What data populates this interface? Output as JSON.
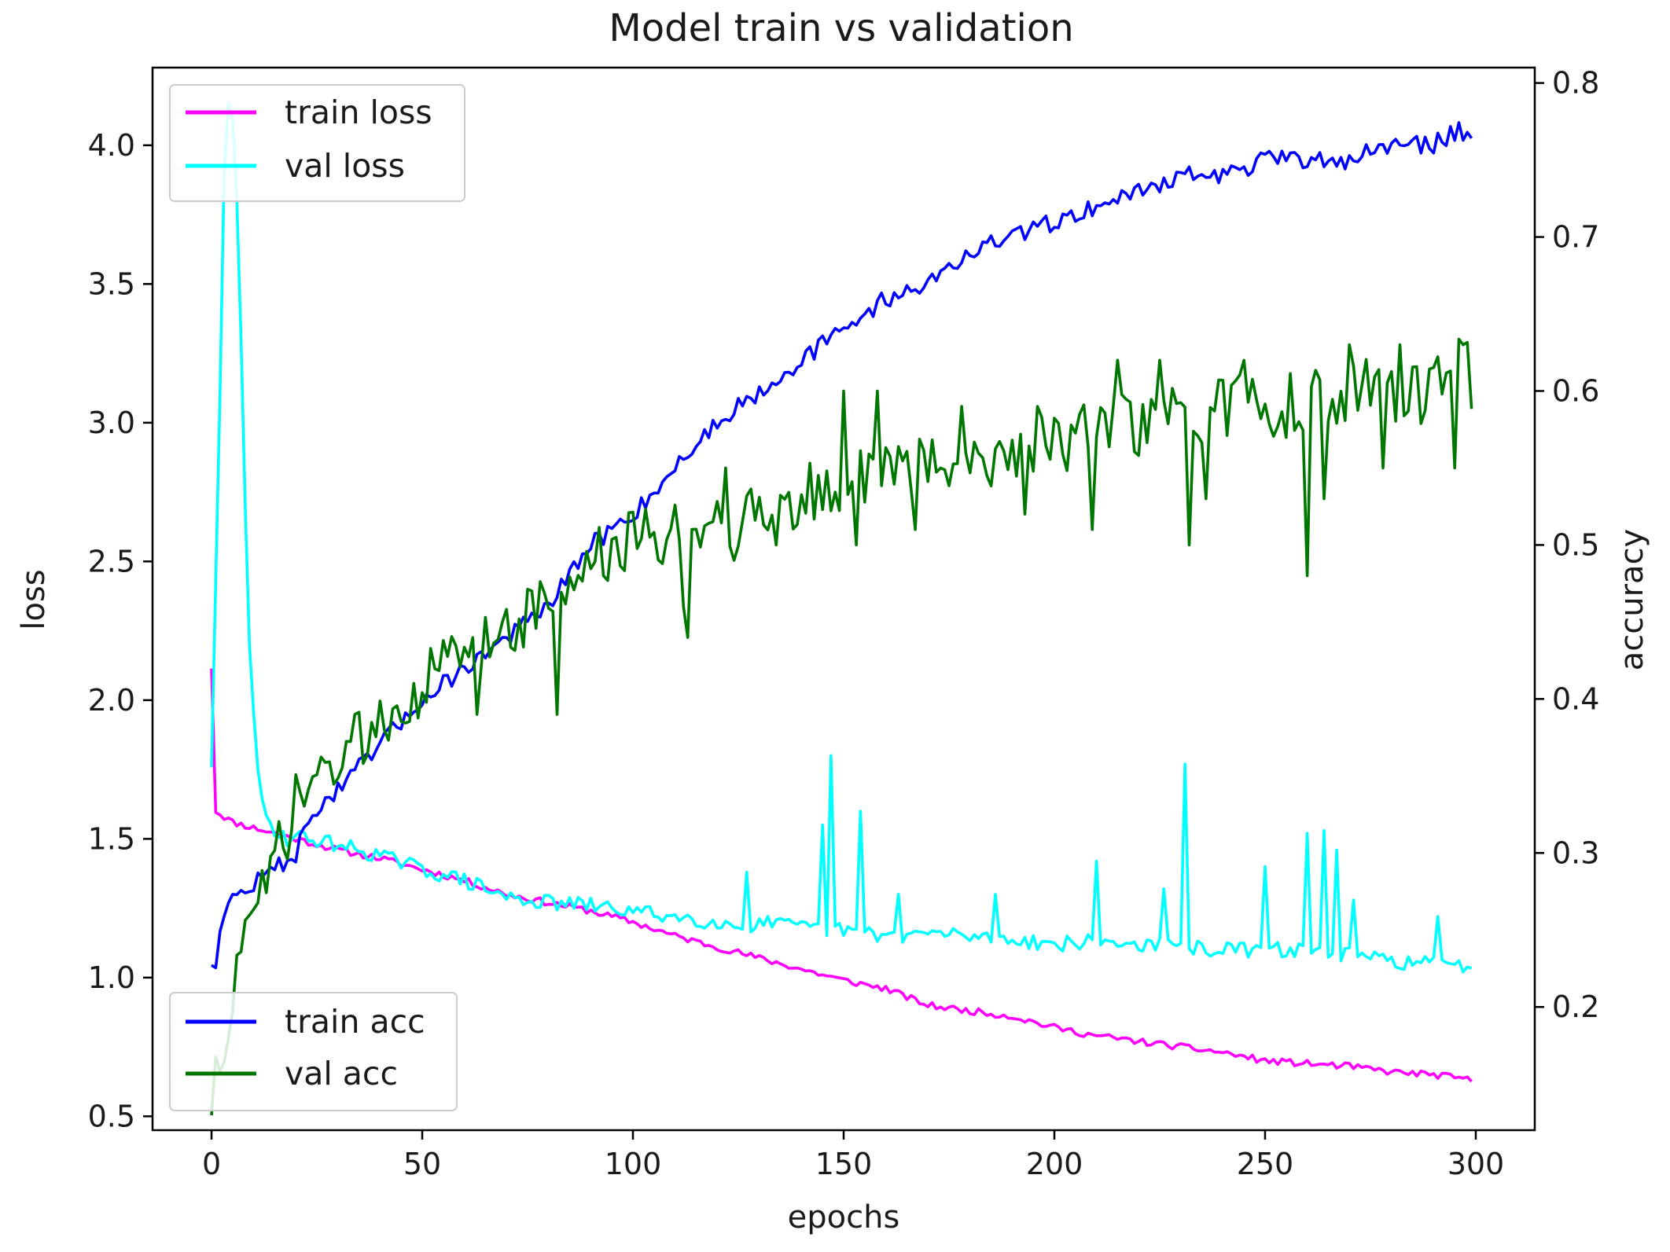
{
  "chart_data": {
    "type": "line",
    "title": "Model train vs validation",
    "xlabel": "epochs",
    "ylabel_left": "loss",
    "ylabel_right": "accuracy",
    "xlim": [
      -14,
      314
    ],
    "ylim_left": [
      0.45,
      4.28
    ],
    "ylim_right": [
      0.12,
      0.81
    ],
    "x_ticks": [
      "0",
      "50",
      "100",
      "150",
      "200",
      "250",
      "300"
    ],
    "x_tick_values": [
      0,
      50,
      100,
      150,
      200,
      250,
      300
    ],
    "y_left_ticks": [
      "0.5",
      "1.0",
      "1.5",
      "2.0",
      "2.5",
      "3.0",
      "3.5",
      "4.0"
    ],
    "y_left_tick_values": [
      0.5,
      1.0,
      1.5,
      2.0,
      2.5,
      3.0,
      3.5,
      4.0
    ],
    "y_right_ticks": [
      "0.2",
      "0.3",
      "0.4",
      "0.5",
      "0.6",
      "0.7",
      "0.8"
    ],
    "y_right_tick_values": [
      0.2,
      0.3,
      0.4,
      0.5,
      0.6,
      0.7,
      0.8
    ],
    "grid": false,
    "legend_loss": {
      "placement": "top-left",
      "entries": [
        "train loss",
        "val loss"
      ]
    },
    "legend_acc": {
      "placement": "bottom-left",
      "entries": [
        "train acc",
        "val acc"
      ]
    },
    "series": [
      {
        "name": "train loss",
        "axis": "left",
        "color": "#ff00ff",
        "points": [
          [
            0,
            2.12
          ],
          [
            1,
            1.6
          ],
          [
            3,
            1.58
          ],
          [
            5,
            1.56
          ],
          [
            10,
            1.54
          ],
          [
            15,
            1.52
          ],
          [
            20,
            1.5
          ],
          [
            25,
            1.48
          ],
          [
            30,
            1.46
          ],
          [
            40,
            1.43
          ],
          [
            50,
            1.39
          ],
          [
            60,
            1.35
          ],
          [
            70,
            1.3
          ],
          [
            80,
            1.27
          ],
          [
            90,
            1.24
          ],
          [
            100,
            1.2
          ],
          [
            110,
            1.15
          ],
          [
            120,
            1.11
          ],
          [
            130,
            1.07
          ],
          [
            140,
            1.03
          ],
          [
            150,
            0.99
          ],
          [
            160,
            0.96
          ],
          [
            170,
            0.9
          ],
          [
            180,
            0.88
          ],
          [
            190,
            0.86
          ],
          [
            200,
            0.82
          ],
          [
            210,
            0.79
          ],
          [
            220,
            0.77
          ],
          [
            230,
            0.75
          ],
          [
            240,
            0.73
          ],
          [
            250,
            0.7
          ],
          [
            260,
            0.69
          ],
          [
            270,
            0.68
          ],
          [
            280,
            0.66
          ],
          [
            290,
            0.65
          ],
          [
            299,
            0.63
          ]
        ],
        "noise": 0.012
      },
      {
        "name": "val loss",
        "axis": "left",
        "color": "#00ffff",
        "points": [
          [
            0,
            1.76
          ],
          [
            2,
            3.1
          ],
          [
            3,
            3.9
          ],
          [
            4,
            4.15
          ],
          [
            5,
            4.1
          ],
          [
            6,
            3.8
          ],
          [
            7,
            3.3
          ],
          [
            8,
            2.7
          ],
          [
            9,
            2.2
          ],
          [
            10,
            1.95
          ],
          [
            11,
            1.75
          ],
          [
            12,
            1.62
          ],
          [
            14,
            1.55
          ],
          [
            18,
            1.5
          ],
          [
            20,
            1.51
          ],
          [
            30,
            1.48
          ],
          [
            40,
            1.44
          ],
          [
            50,
            1.39
          ],
          [
            60,
            1.35
          ],
          [
            70,
            1.29
          ],
          [
            80,
            1.27
          ],
          [
            90,
            1.26
          ],
          [
            100,
            1.24
          ],
          [
            110,
            1.22
          ],
          [
            120,
            1.2
          ],
          [
            126,
            1.18
          ],
          [
            130,
            1.2
          ],
          [
            140,
            1.18
          ],
          [
            150,
            1.17
          ],
          [
            160,
            1.15
          ],
          [
            170,
            1.16
          ],
          [
            180,
            1.15
          ],
          [
            190,
            1.14
          ],
          [
            200,
            1.12
          ],
          [
            210,
            1.13
          ],
          [
            220,
            1.12
          ],
          [
            230,
            1.11
          ],
          [
            240,
            1.1
          ],
          [
            250,
            1.1
          ],
          [
            260,
            1.1
          ],
          [
            270,
            1.08
          ],
          [
            280,
            1.06
          ],
          [
            290,
            1.05
          ],
          [
            299,
            1.04
          ]
        ],
        "spikes": [
          [
            127,
            1.38
          ],
          [
            145,
            1.55
          ],
          [
            147,
            1.8
          ],
          [
            154,
            1.6
          ],
          [
            163,
            1.3
          ],
          [
            186,
            1.3
          ],
          [
            210,
            1.42
          ],
          [
            226,
            1.32
          ],
          [
            231,
            1.77
          ],
          [
            250,
            1.4
          ],
          [
            260,
            1.52
          ],
          [
            264,
            1.53
          ],
          [
            267,
            1.46
          ],
          [
            271,
            1.28
          ],
          [
            291,
            1.22
          ]
        ],
        "noise": 0.028
      },
      {
        "name": "train acc",
        "axis": "right",
        "color": "#0000ff",
        "points": [
          [
            0,
            0.23
          ],
          [
            1,
            0.225
          ],
          [
            2,
            0.255
          ],
          [
            3,
            0.26
          ],
          [
            5,
            0.27
          ],
          [
            8,
            0.275
          ],
          [
            10,
            0.28
          ],
          [
            15,
            0.29
          ],
          [
            20,
            0.3
          ],
          [
            25,
            0.33
          ],
          [
            30,
            0.34
          ],
          [
            40,
            0.37
          ],
          [
            50,
            0.4
          ],
          [
            60,
            0.42
          ],
          [
            70,
            0.44
          ],
          [
            80,
            0.46
          ],
          [
            90,
            0.5
          ],
          [
            100,
            0.52
          ],
          [
            110,
            0.55
          ],
          [
            120,
            0.58
          ],
          [
            130,
            0.6
          ],
          [
            140,
            0.62
          ],
          [
            150,
            0.64
          ],
          [
            160,
            0.66
          ],
          [
            170,
            0.67
          ],
          [
            180,
            0.69
          ],
          [
            190,
            0.7
          ],
          [
            200,
            0.71
          ],
          [
            210,
            0.72
          ],
          [
            220,
            0.73
          ],
          [
            230,
            0.74
          ],
          [
            240,
            0.74
          ],
          [
            250,
            0.75
          ],
          [
            260,
            0.75
          ],
          [
            270,
            0.75
          ],
          [
            280,
            0.76
          ],
          [
            290,
            0.76
          ],
          [
            296,
            0.77
          ],
          [
            299,
            0.765
          ]
        ],
        "noise": 0.006
      },
      {
        "name": "val acc",
        "axis": "right",
        "color": "#007700",
        "points": [
          [
            0,
            0.14
          ],
          [
            1,
            0.15
          ],
          [
            2,
            0.145
          ],
          [
            3,
            0.17
          ],
          [
            4,
            0.2
          ],
          [
            6,
            0.22
          ],
          [
            8,
            0.25
          ],
          [
            10,
            0.245
          ],
          [
            12,
            0.27
          ],
          [
            15,
            0.3
          ],
          [
            18,
            0.31
          ],
          [
            20,
            0.33
          ],
          [
            25,
            0.35
          ],
          [
            30,
            0.36
          ],
          [
            35,
            0.37
          ],
          [
            40,
            0.39
          ],
          [
            50,
            0.41
          ],
          [
            60,
            0.43
          ],
          [
            70,
            0.45
          ],
          [
            80,
            0.46
          ],
          [
            90,
            0.49
          ],
          [
            100,
            0.5
          ],
          [
            110,
            0.51
          ],
          [
            120,
            0.52
          ],
          [
            130,
            0.52
          ],
          [
            140,
            0.53
          ],
          [
            150,
            0.54
          ],
          [
            160,
            0.55
          ],
          [
            170,
            0.55
          ],
          [
            180,
            0.56
          ],
          [
            190,
            0.56
          ],
          [
            200,
            0.57
          ],
          [
            210,
            0.57
          ],
          [
            220,
            0.58
          ],
          [
            230,
            0.58
          ],
          [
            240,
            0.59
          ],
          [
            250,
            0.59
          ],
          [
            260,
            0.59
          ],
          [
            270,
            0.6
          ],
          [
            280,
            0.6
          ],
          [
            290,
            0.6
          ],
          [
            296,
            0.62
          ],
          [
            299,
            0.61
          ]
        ],
        "dips": [
          [
            41,
            0.38
          ],
          [
            63,
            0.39
          ],
          [
            82,
            0.39
          ],
          [
            112,
            0.46
          ],
          [
            113,
            0.44
          ],
          [
            124,
            0.49
          ],
          [
            134,
            0.5
          ],
          [
            153,
            0.5
          ],
          [
            167,
            0.51
          ],
          [
            193,
            0.52
          ],
          [
            209,
            0.51
          ],
          [
            215,
            0.53
          ],
          [
            232,
            0.5
          ],
          [
            236,
            0.53
          ],
          [
            260,
            0.48
          ],
          [
            264,
            0.53
          ],
          [
            278,
            0.55
          ],
          [
            295,
            0.55
          ]
        ],
        "peaks": [
          [
            122,
            0.55
          ],
          [
            150,
            0.6
          ],
          [
            158,
            0.6
          ],
          [
            178,
            0.59
          ],
          [
            196,
            0.59
          ],
          [
            215,
            0.62
          ],
          [
            225,
            0.62
          ],
          [
            245,
            0.62
          ],
          [
            270,
            0.63
          ],
          [
            282,
            0.63
          ],
          [
            297,
            0.63
          ]
        ],
        "noise": 0.022
      }
    ]
  }
}
